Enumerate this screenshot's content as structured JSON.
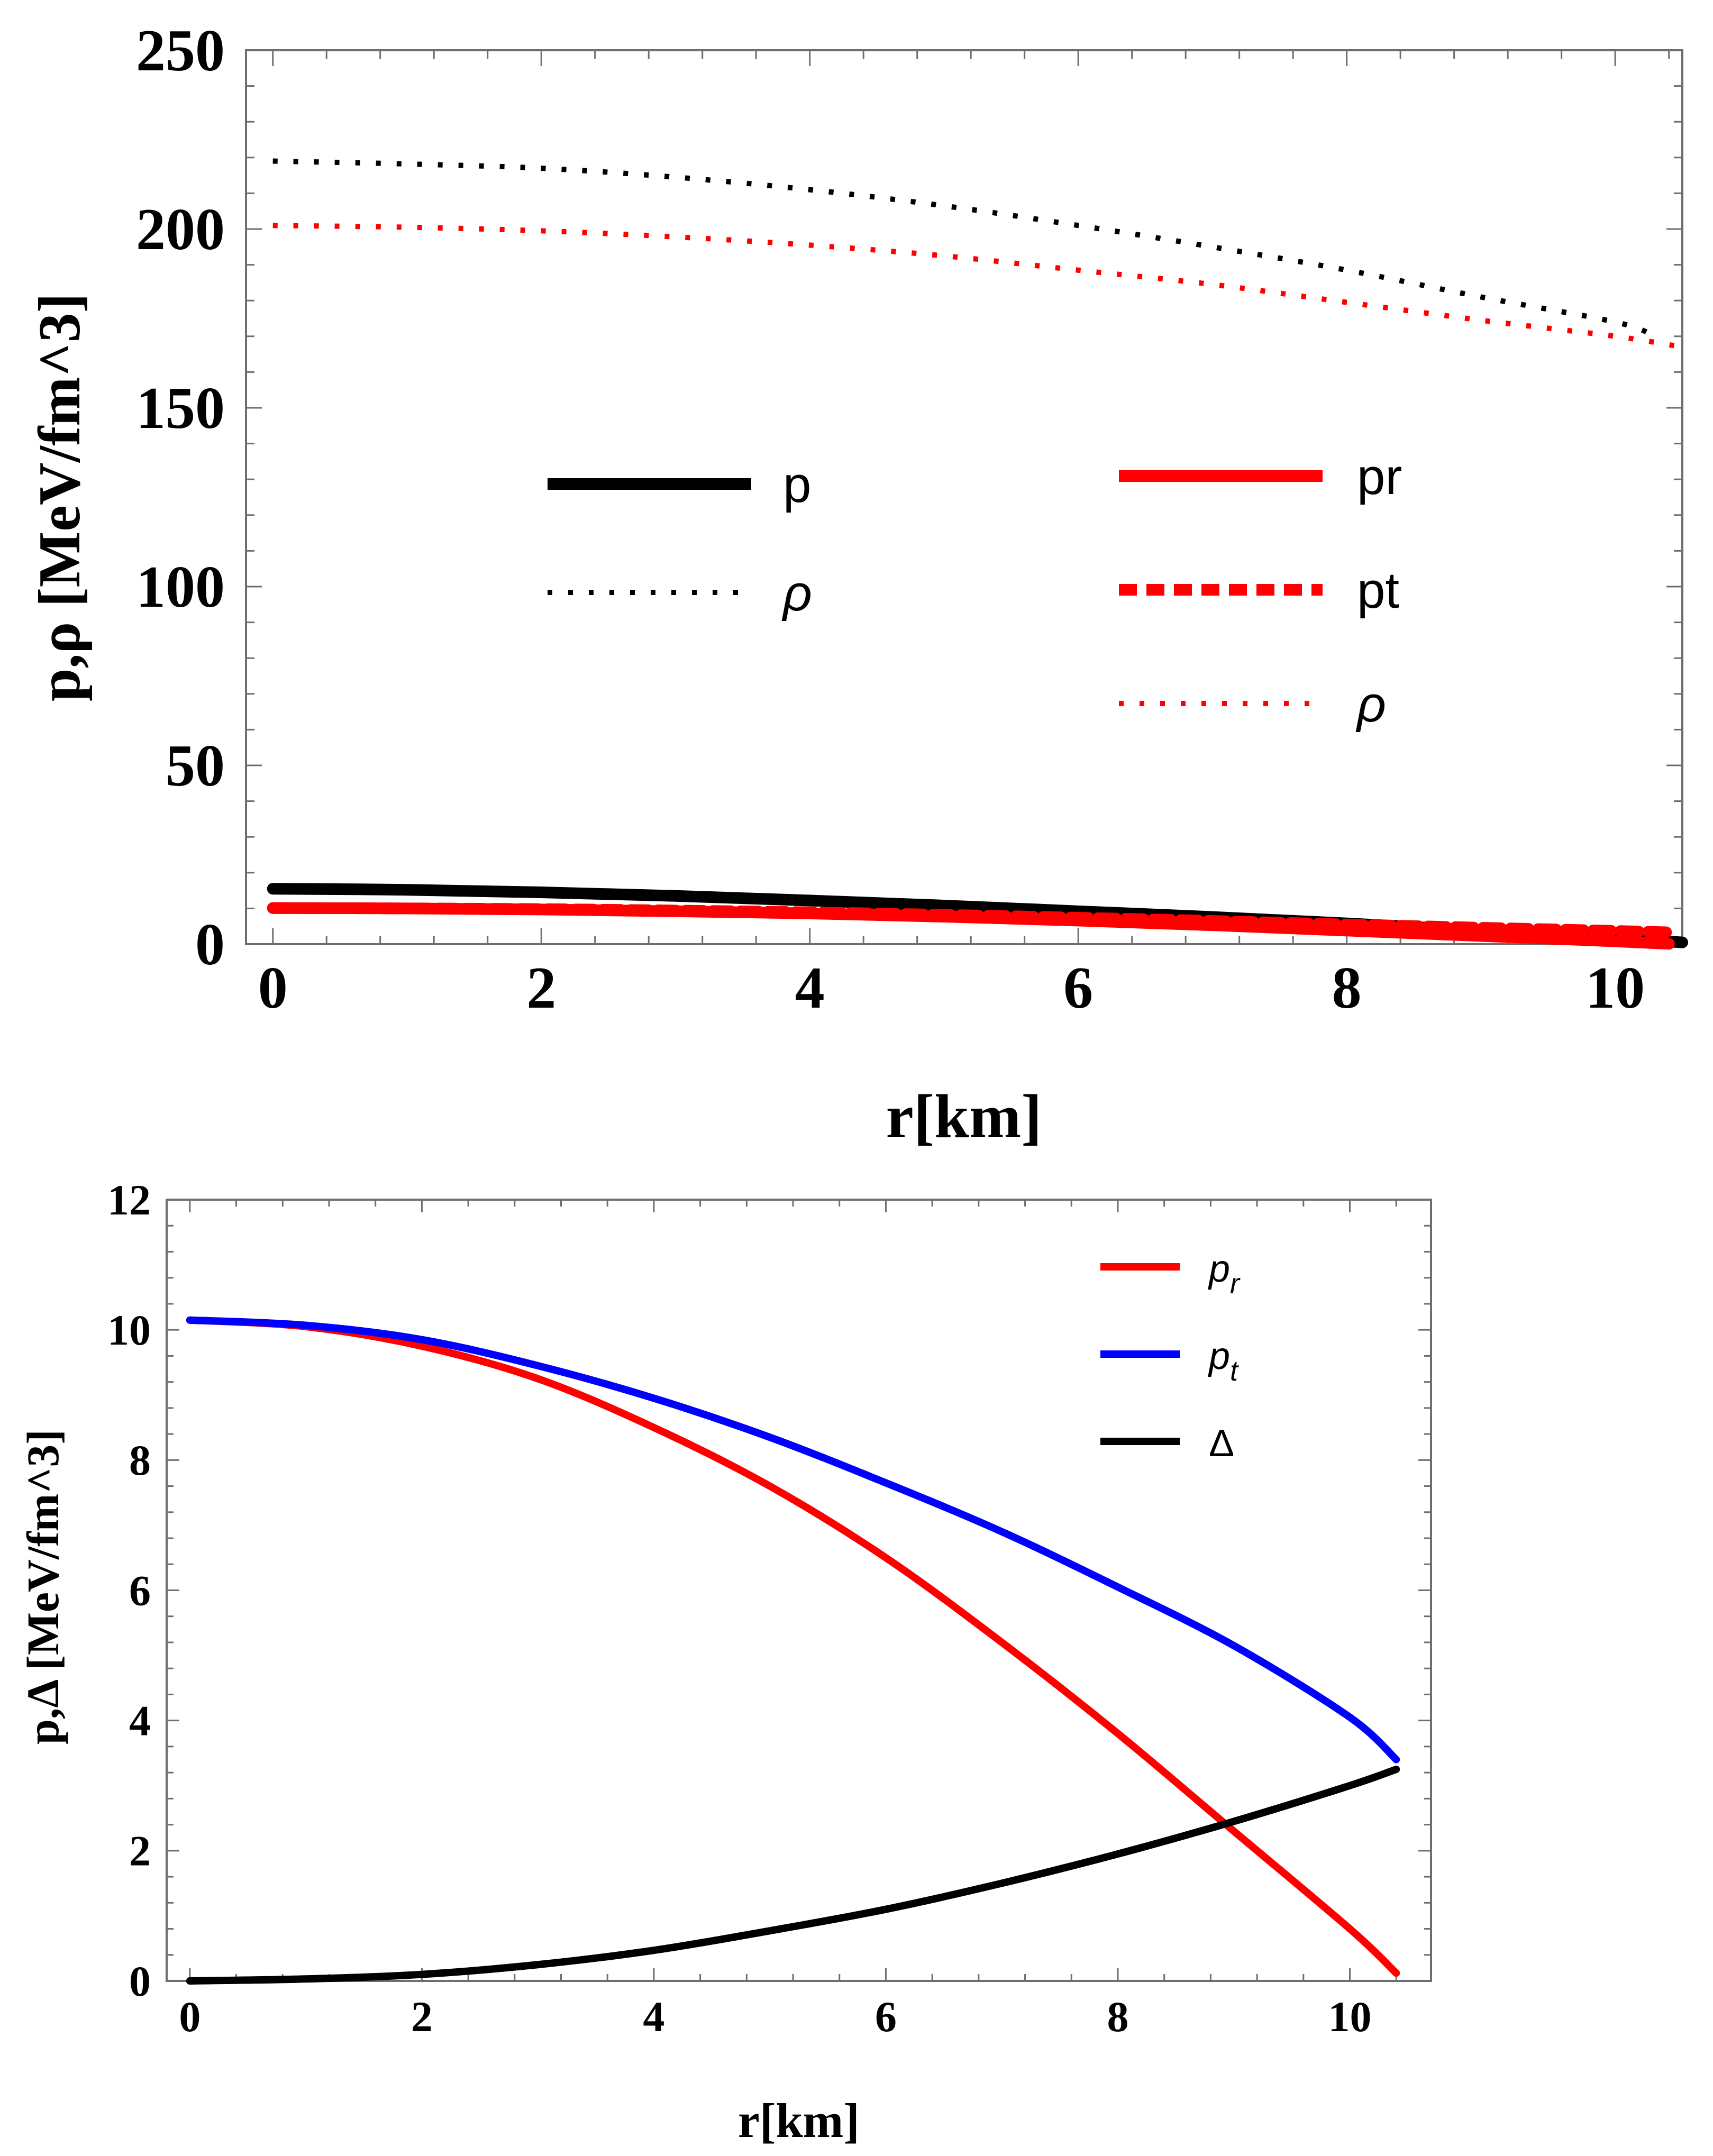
{
  "chart_data": [
    {
      "type": "line",
      "ylabel": "p,ρ [MeV/fm^3]",
      "xlabel": "r[km]",
      "xlim": [
        -0.2,
        10.5
      ],
      "ylim": [
        0,
        250
      ],
      "xticks": [
        0,
        2,
        4,
        6,
        8,
        10
      ],
      "yticks": [
        0,
        50,
        100,
        150,
        200,
        250
      ],
      "xtick_labels": [
        "0",
        "2",
        "4",
        "6",
        "8",
        "10"
      ],
      "ytick_labels": [
        "0",
        "50",
        "100",
        "150",
        "200",
        "250"
      ],
      "legend_groups": [
        {
          "placement": "center-left",
          "entries": [
            {
              "label": "p",
              "color": "#000000",
              "style": "solid"
            },
            {
              "label": "ρ",
              "color": "#000000",
              "style": "dotted"
            }
          ]
        },
        {
          "placement": "center-right",
          "entries": [
            {
              "label": "pr",
              "color": "#ff0000",
              "style": "solid"
            },
            {
              "label": "pt",
              "color": "#ff0000",
              "style": "dashed"
            },
            {
              "label": "ρ",
              "color": "#ff0000",
              "style": "dotted"
            }
          ]
        }
      ],
      "series": [
        {
          "name": "p",
          "color": "#000000",
          "style": "solid",
          "x": [
            0,
            1,
            2,
            3,
            4,
            5,
            6,
            7,
            8,
            9,
            10,
            10.5
          ],
          "y": [
            15.5,
            15.2,
            14.5,
            13.5,
            12.2,
            10.8,
            9.2,
            7.6,
            5.8,
            3.8,
            1.7,
            0.5
          ]
        },
        {
          "name": "ρ",
          "color": "#000000",
          "style": "dotted",
          "x": [
            0,
            1,
            2,
            3,
            4,
            5,
            6,
            7,
            8,
            9,
            10,
            10.3
          ],
          "y": [
            219,
            218.2,
            217,
            214.5,
            211,
            206.5,
            201,
            195,
            188.5,
            181,
            174,
            170
          ]
        },
        {
          "name": "pr",
          "color": "#ff0000",
          "style": "solid",
          "x": [
            0,
            1,
            2,
            3,
            4,
            5,
            6,
            7,
            8,
            9,
            10,
            10.4
          ],
          "y": [
            10.1,
            10.0,
            9.7,
            9.2,
            8.6,
            7.7,
            6.6,
            5.3,
            3.8,
            2.3,
            0.8,
            0.1
          ]
        },
        {
          "name": "pt",
          "color": "#ff0000",
          "style": "dashed",
          "x": [
            0,
            1,
            2,
            3,
            4,
            5,
            6,
            7,
            8,
            9,
            10,
            10.4
          ],
          "y": [
            10.1,
            10.0,
            9.8,
            9.4,
            8.9,
            8.2,
            7.4,
            6.5,
            5.5,
            4.6,
            3.7,
            3.3
          ]
        },
        {
          "name": "ρ",
          "color": "#ff0000",
          "style": "dotted",
          "x": [
            0,
            1,
            2,
            3,
            4,
            5,
            6,
            7,
            8,
            9,
            10,
            10.5
          ],
          "y": [
            201,
            200.5,
            199.5,
            197.8,
            195.5,
            192.5,
            188.5,
            184.5,
            179.5,
            174.5,
            170,
            167
          ]
        }
      ]
    },
    {
      "type": "line",
      "ylabel": "p,Δ [MeV/fm^3]",
      "xlabel": "r[km]",
      "xlim": [
        -0.2,
        10.7
      ],
      "ylim": [
        0,
        12
      ],
      "xticks": [
        0,
        2,
        4,
        6,
        8,
        10
      ],
      "yticks": [
        0,
        2,
        4,
        6,
        8,
        10,
        12
      ],
      "xtick_labels": [
        "0",
        "2",
        "4",
        "6",
        "8",
        "10"
      ],
      "ytick_labels": [
        "0",
        "2",
        "4",
        "6",
        "8",
        "10",
        "12"
      ],
      "legend": {
        "placement": "top-right",
        "entries": [
          {
            "label": "p",
            "subscript": "r",
            "color": "#ff0000"
          },
          {
            "label": "p",
            "subscript": "t",
            "color": "#0000ff"
          },
          {
            "label": "Δ",
            "subscript": "",
            "color": "#000000"
          }
        ]
      },
      "series": [
        {
          "name": "p_r",
          "color": "#ff0000",
          "x": [
            0,
            1,
            2,
            3,
            4,
            5,
            6,
            7,
            8,
            9,
            10,
            10.4
          ],
          "y": [
            10.15,
            10.05,
            9.75,
            9.25,
            8.5,
            7.6,
            6.5,
            5.2,
            3.8,
            2.3,
            0.8,
            0.12
          ]
        },
        {
          "name": "p_t",
          "color": "#0000ff",
          "x": [
            0,
            1,
            2,
            3,
            4,
            5,
            6,
            7,
            8,
            9,
            10,
            10.4
          ],
          "y": [
            10.15,
            10.07,
            9.85,
            9.45,
            8.95,
            8.35,
            7.65,
            6.9,
            6.05,
            5.15,
            4.05,
            3.4
          ]
        },
        {
          "name": "Δ",
          "color": "#000000",
          "x": [
            0,
            1,
            2,
            3,
            4,
            5,
            6,
            7,
            8,
            9,
            10,
            10.4
          ],
          "y": [
            0.0,
            0.03,
            0.1,
            0.25,
            0.47,
            0.77,
            1.1,
            1.5,
            1.95,
            2.45,
            3.0,
            3.25
          ]
        }
      ]
    }
  ]
}
